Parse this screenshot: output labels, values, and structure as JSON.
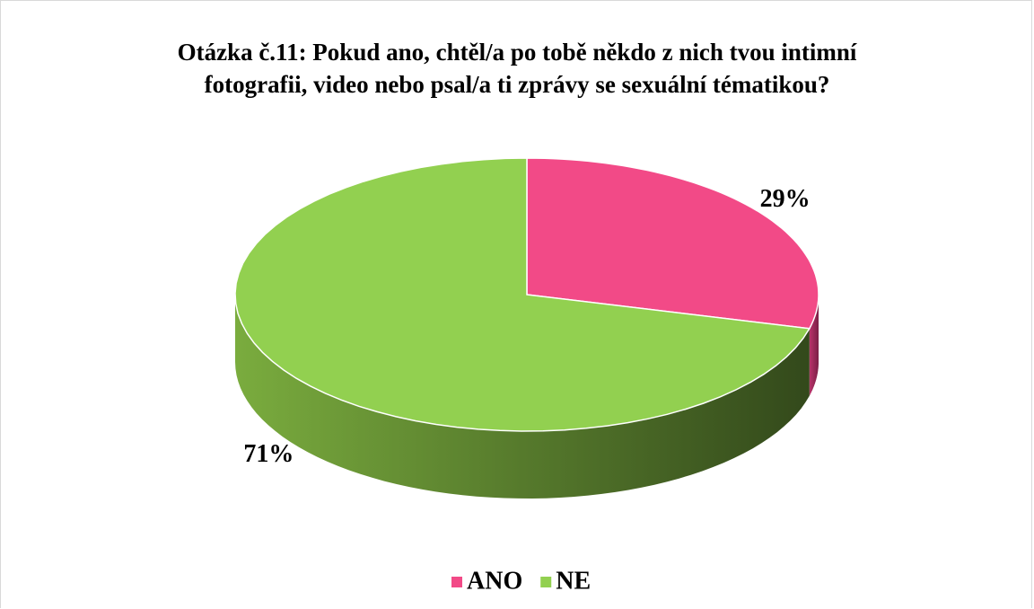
{
  "chart_data": {
    "type": "pie",
    "title": "Otázka č.11: Pokud ano, chtěl/a po tobě někdo z nich tvou intimní fotografii, video nebo psal/a ti zprávy se sexuální tématikou?",
    "categories": [
      "ANO",
      "NE"
    ],
    "values": [
      29,
      71
    ],
    "value_labels": [
      "29%",
      "71%"
    ],
    "colors": [
      "#f24a87",
      "#92d050"
    ],
    "legend": "bottom"
  }
}
